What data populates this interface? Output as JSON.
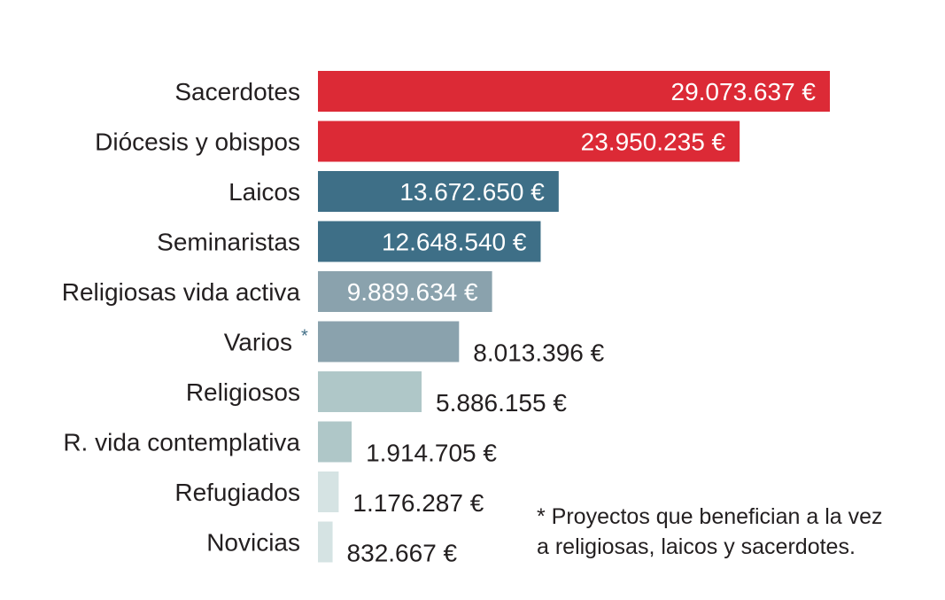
{
  "chart_data": {
    "type": "bar",
    "orientation": "horizontal",
    "title": "",
    "xlabel": "",
    "ylabel": "",
    "categories": [
      "Sacerdotes",
      "Diócesis y obispos",
      "Laicos",
      "Seminaristas",
      "Religiosas vida activa",
      "Varios",
      "Religiosos",
      "R. vida contemplativa",
      "Refugiados",
      "Novicias"
    ],
    "values": [
      29073637,
      23950235,
      13672650,
      12648540,
      9889634,
      8013396,
      5886155,
      1914705,
      1176287,
      832667
    ],
    "value_labels": [
      "29.073.637 €",
      "23.950.235 €",
      "13.672.650 €",
      "12.648.540 €",
      "9.889.634 €",
      "8.013.396 €",
      "5.886.155 €",
      "1.914.705 €",
      "1.176.287 €",
      "832.667 €"
    ],
    "bar_colors": [
      "#dc2a36",
      "#dc2a36",
      "#3e6f87",
      "#3e6f87",
      "#8aa2ad",
      "#8aa2ad",
      "#afc7c8",
      "#afc7c8",
      "#d5e3e3",
      "#d5e3e3"
    ],
    "value_label_colors": [
      "#ffffff",
      "#ffffff",
      "#ffffff",
      "#ffffff",
      "#ffffff",
      "#231f20",
      "#231f20",
      "#231f20",
      "#231f20",
      "#231f20"
    ],
    "value_label_inside": [
      true,
      true,
      true,
      true,
      true,
      false,
      false,
      false,
      false,
      false
    ],
    "marked_category": "Varios",
    "marker_text": "*",
    "marker_color": "#426f87",
    "grid": false,
    "legend": "none"
  },
  "footnote": {
    "text": "* Proyectos que benefician a la vez\na religiosas, laicos y sacerdotes."
  }
}
